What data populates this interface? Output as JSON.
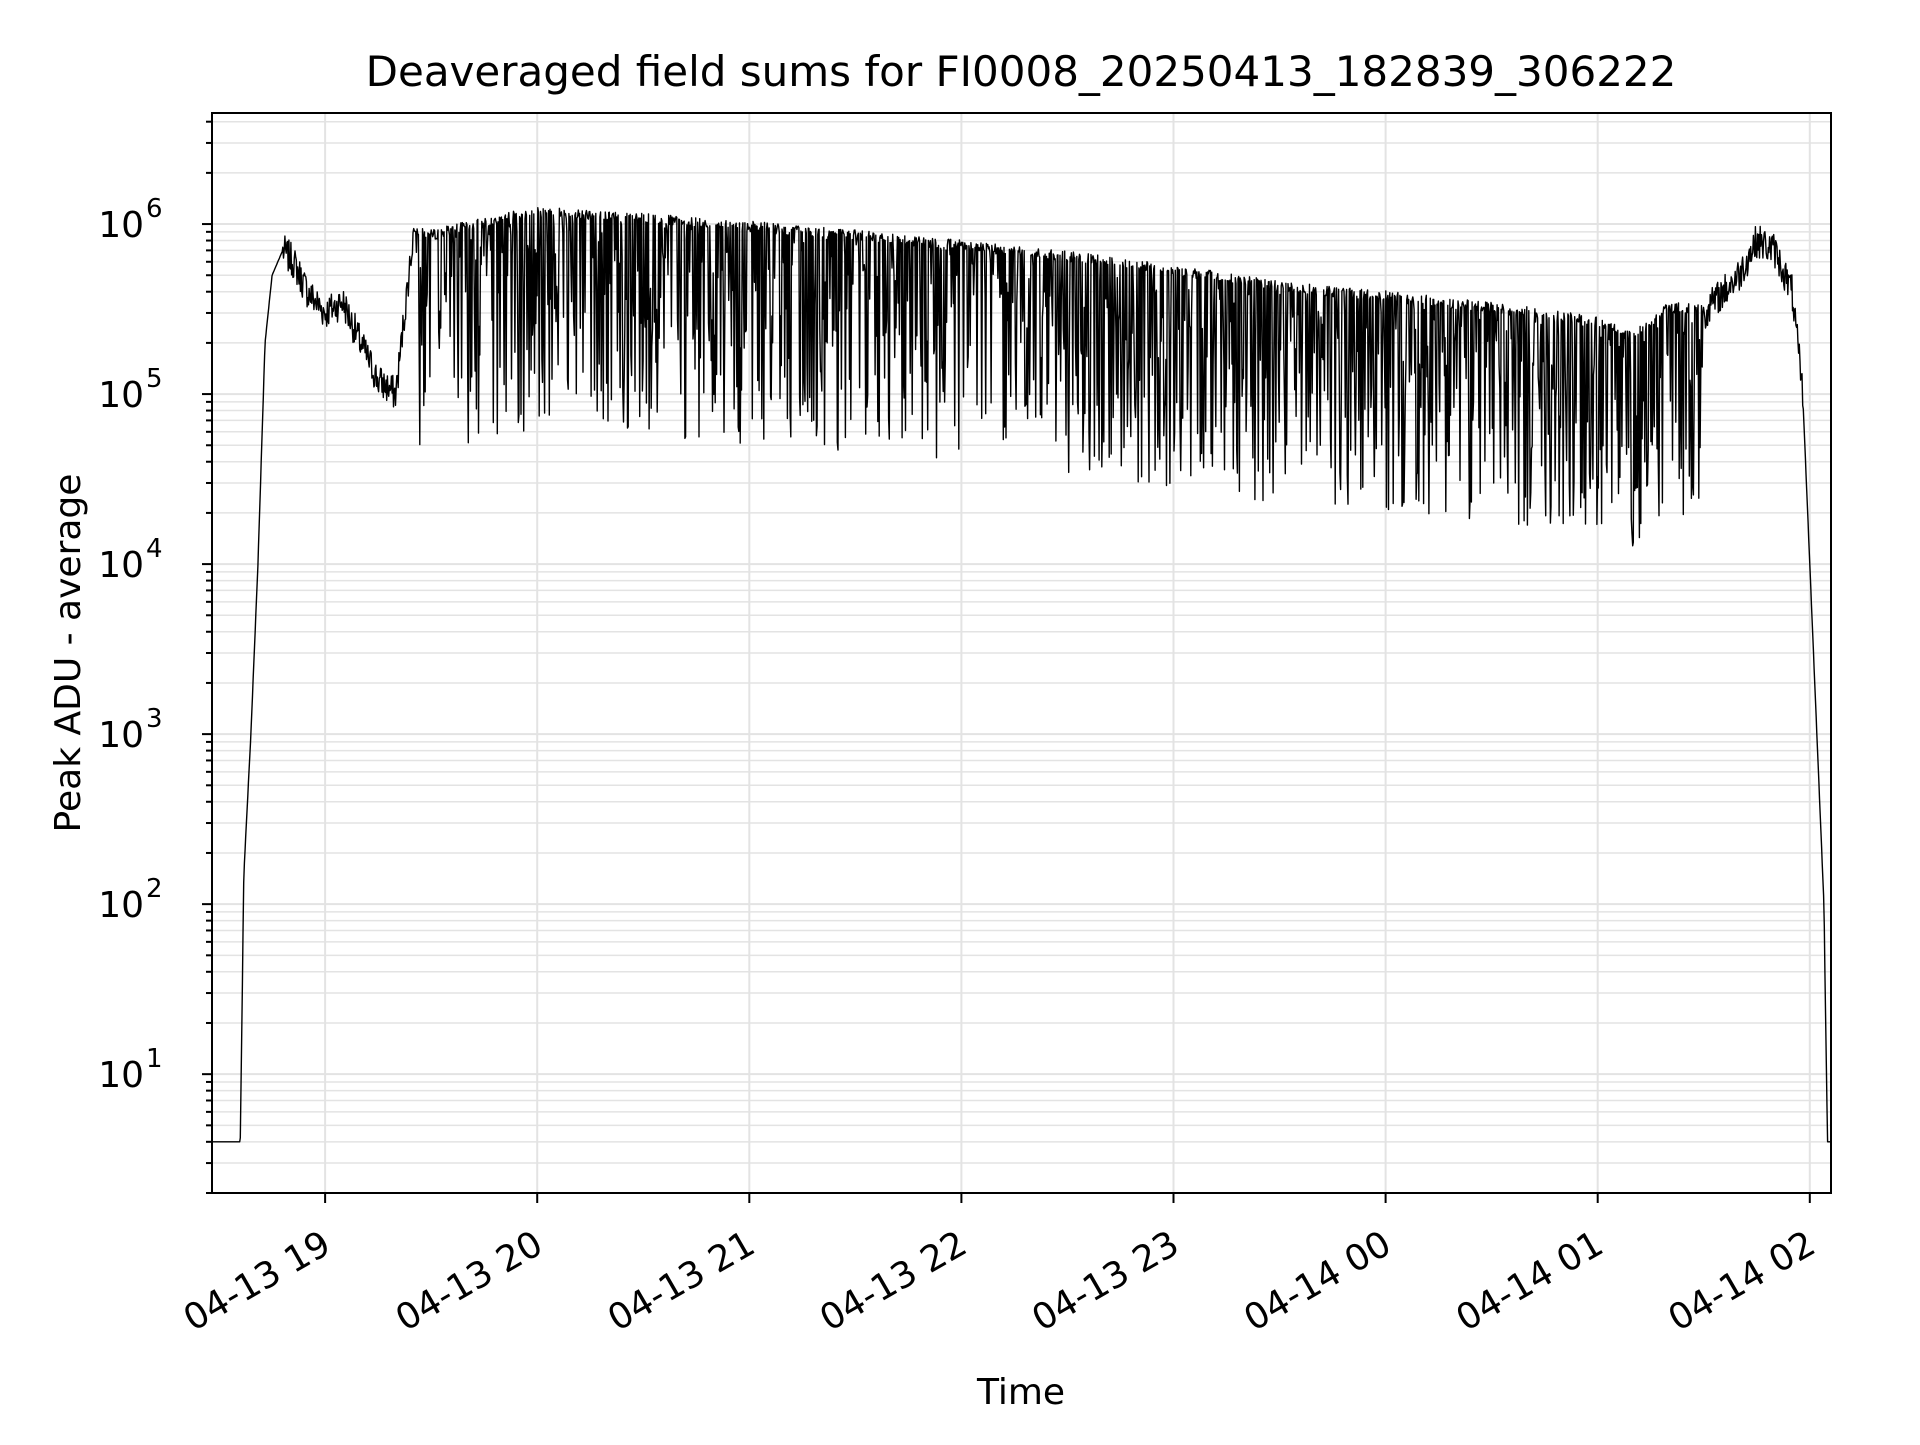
{
  "chart_data": {
    "type": "line",
    "title": "Deaveraged field sums for FI0008_20250413_182839_306222",
    "xlabel": "Time",
    "ylabel": "Peak ADU - average",
    "x_scale": "time",
    "y_scale": "log",
    "grid": true,
    "legend": "none",
    "xlim": [
      "2025-04-13 18:28",
      "2025-04-14 02:06"
    ],
    "ylim": [
      2,
      4500000
    ],
    "x_tick_labels": [
      "04-13 19",
      "04-13 20",
      "04-13 21",
      "04-13 22",
      "04-13 23",
      "04-14 00",
      "04-14 01",
      "04-14 02"
    ],
    "y_tick_labels": [
      {
        "base": "10",
        "exp": "1"
      },
      {
        "base": "10",
        "exp": "2"
      },
      {
        "base": "10",
        "exp": "3"
      },
      {
        "base": "10",
        "exp": "4"
      },
      {
        "base": "10",
        "exp": "5"
      },
      {
        "base": "10",
        "exp": "6"
      }
    ],
    "line_color": "#000000",
    "grid_color": "#e3e3e3",
    "series": [
      {
        "x": [
          "2025-04-13 18:28",
          "2025-04-13 18:36",
          "2025-04-13 18:37",
          "2025-04-13 18:39",
          "2025-04-13 18:41",
          "2025-04-13 18:43",
          "2025-04-13 18:45",
          "2025-04-13 18:48",
          "2025-04-13 18:51",
          "2025-04-13 18:55",
          "2025-04-13 19:00",
          "2025-04-13 19:05",
          "2025-04-13 19:10",
          "2025-04-13 19:15",
          "2025-04-13 19:20",
          "2025-04-13 19:25",
          "2025-04-13 19:30",
          "2025-04-13 19:40",
          "2025-04-13 19:50",
          "2025-04-13 20:00",
          "2025-04-13 20:30",
          "2025-04-13 21:00",
          "2025-04-13 21:30",
          "2025-04-13 22:00",
          "2025-04-13 22:30",
          "2025-04-13 23:00",
          "2025-04-13 23:30",
          "2025-04-14 00:00",
          "2025-04-14 00:30",
          "2025-04-14 01:00",
          "2025-04-14 01:10",
          "2025-04-14 01:20",
          "2025-04-14 01:30",
          "2025-04-14 01:40",
          "2025-04-14 01:45",
          "2025-04-14 01:50",
          "2025-04-14 01:55",
          "2025-04-14 01:58",
          "2025-04-14 02:00",
          "2025-04-14 02:02",
          "2025-04-14 02:04",
          "2025-04-14 02:05",
          "2025-04-14 02:06"
        ],
        "y": [
          4,
          4,
          150,
          1000,
          10000,
          200000,
          500000,
          700000,
          600000,
          400000,
          300000,
          350000,
          200000,
          120000,
          100000,
          900000,
          800000,
          900000,
          1000000,
          1100000,
          1000000,
          900000,
          800000,
          700000,
          600000,
          500000,
          400000,
          350000,
          300000,
          250000,
          200000,
          300000,
          300000,
          500000,
          800000,
          700000,
          400000,
          100000,
          10000,
          1000,
          100,
          4,
          4
        ]
      }
    ]
  }
}
